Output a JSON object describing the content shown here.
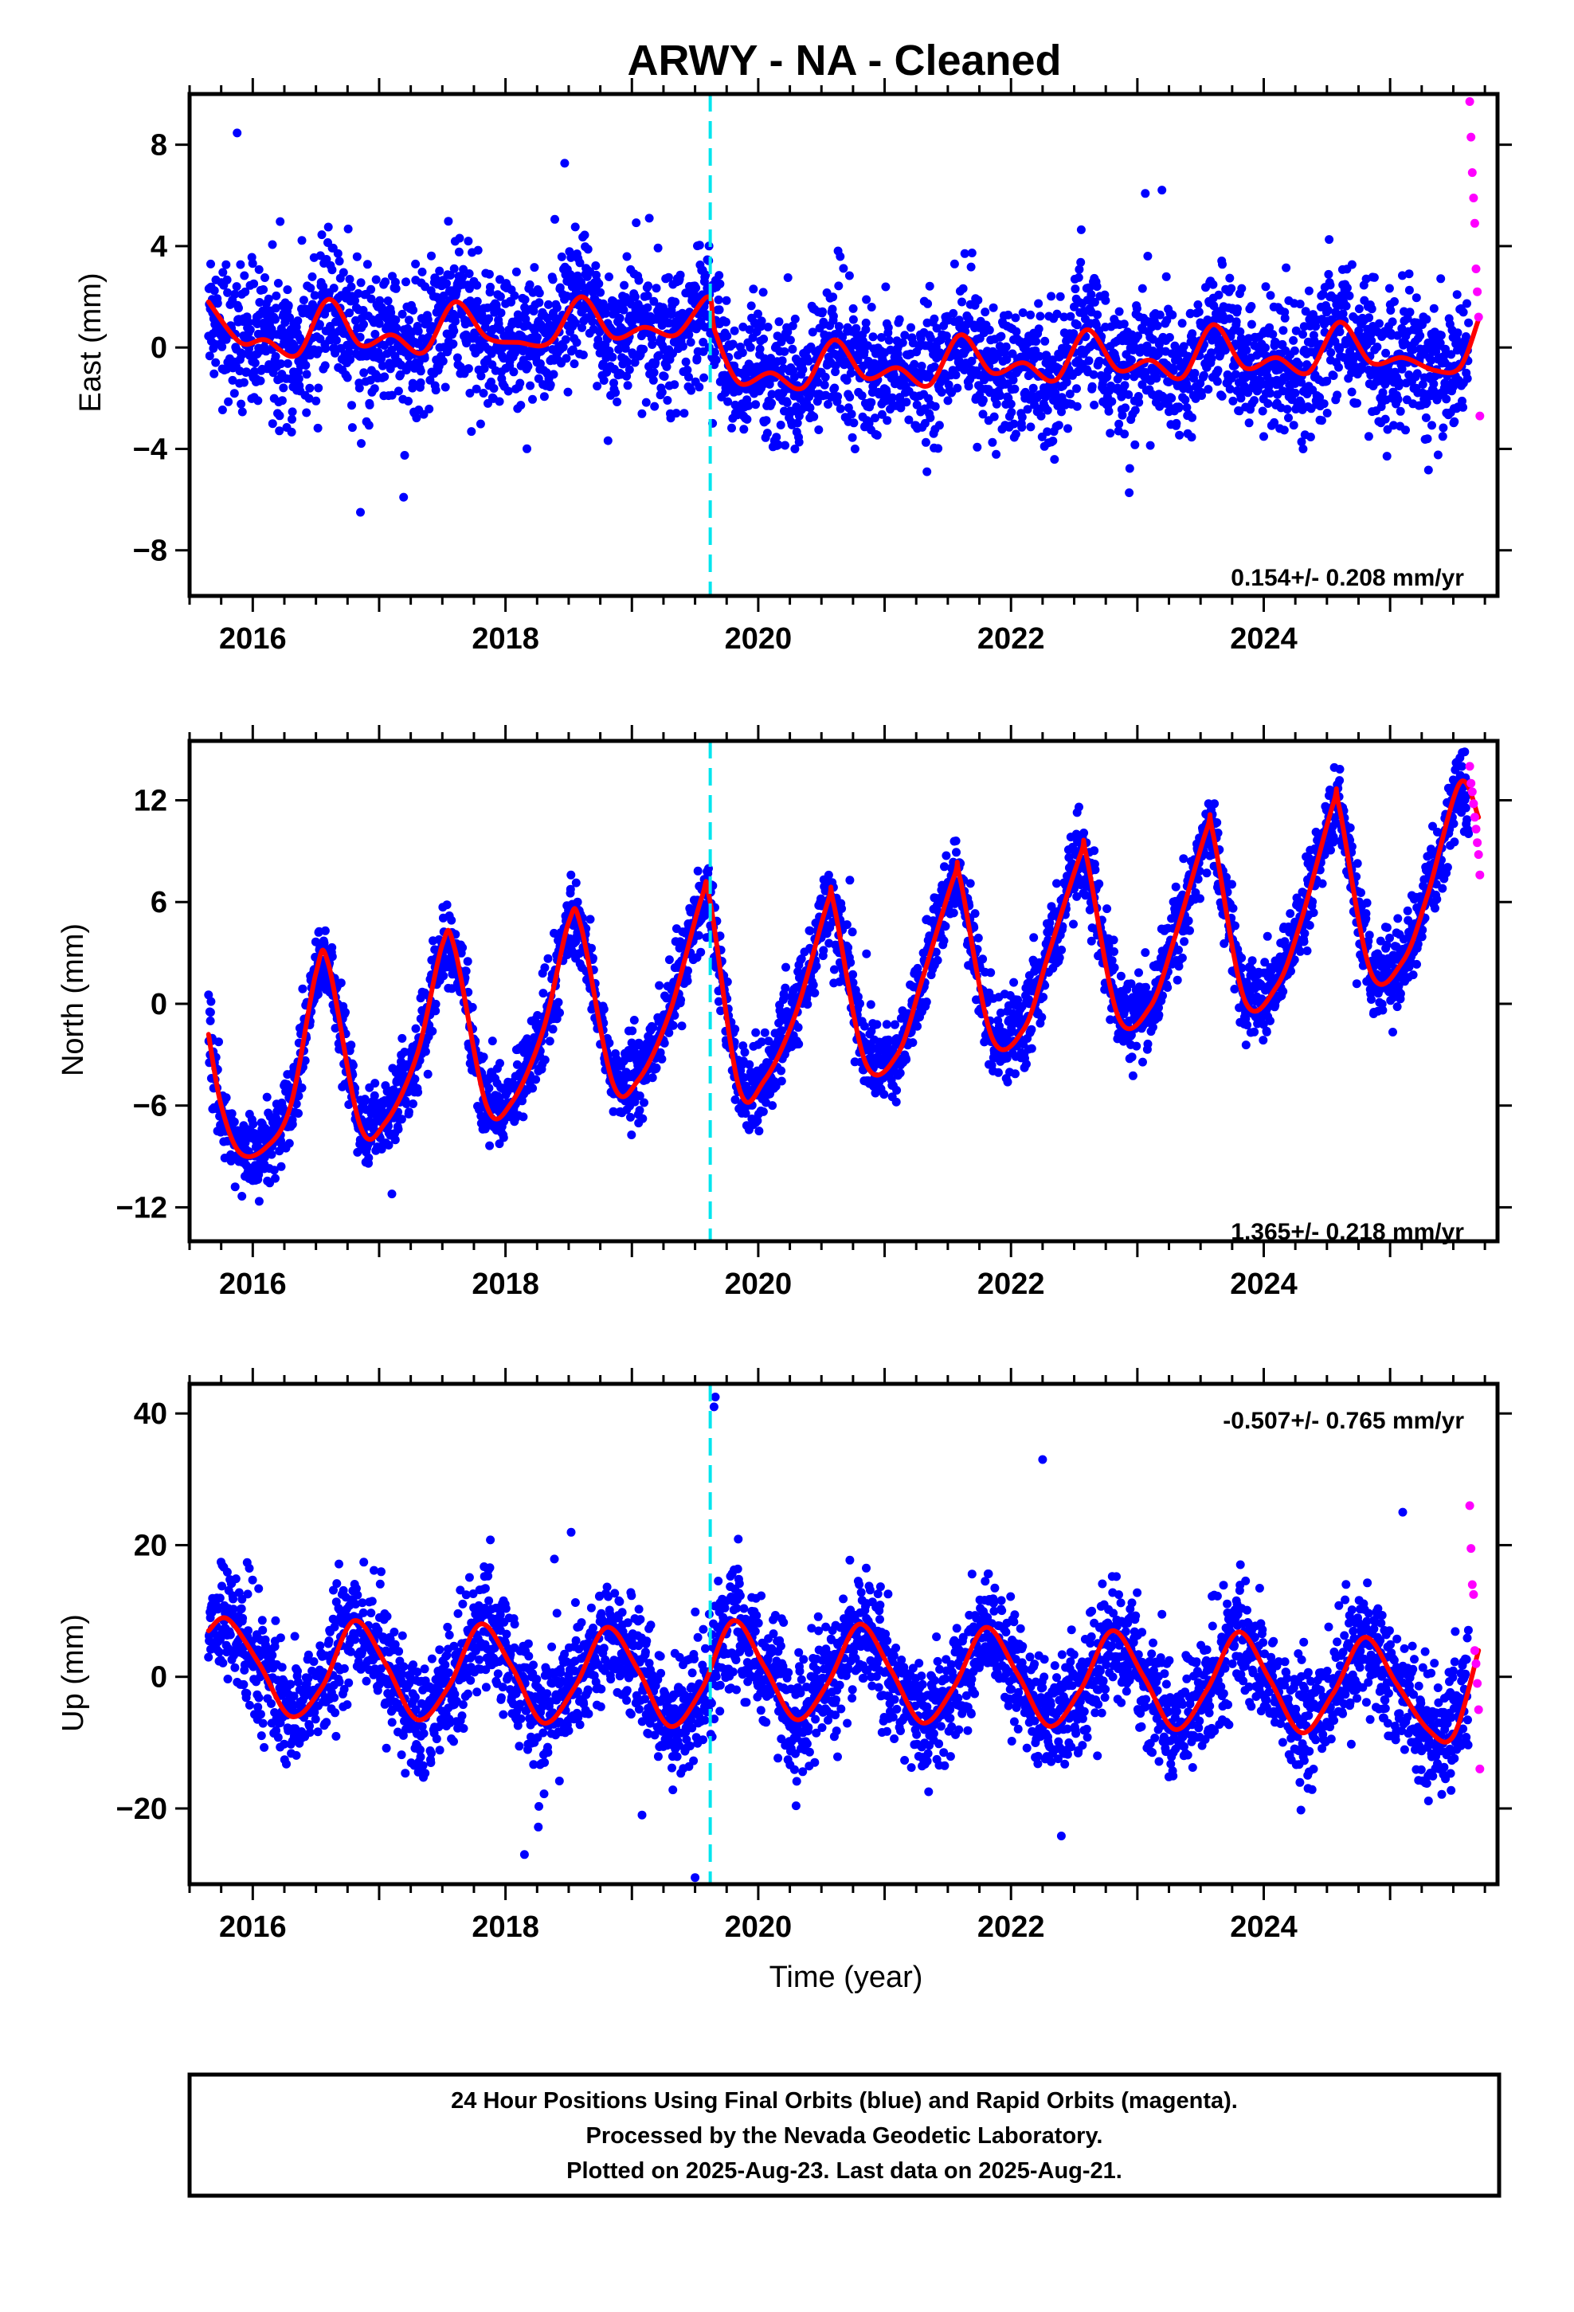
{
  "title": "ARWY  - NA - Cleaned",
  "colors": {
    "final": "#0000ff",
    "rapid": "#ff00ff",
    "model": "#ff0000",
    "event_line": "#00e5ee"
  },
  "chart_data": [
    {
      "type": "scatter",
      "ylabel": "East (mm)",
      "xlabel": "",
      "xlim": [
        2015.5,
        2025.85
      ],
      "ylim": [
        -9.8,
        10.0
      ],
      "x_ticks": [
        2016,
        2018,
        2020,
        2022,
        2024
      ],
      "y_ticks": [
        8,
        4,
        0,
        -4,
        -8
      ],
      "y_tick_labels": [
        "8",
        "4",
        "0",
        "−4",
        "−8"
      ],
      "rate_label": "0.154+/- 0.208 mm/yr",
      "rate_position": "bottom-right",
      "event_line_x": 2019.62,
      "data_span": [
        2015.65,
        2025.62
      ],
      "series": [
        {
          "role": "final orbits (blue)",
          "model_offset_pre_step": 0.6,
          "model_offset_post_step": -1.2,
          "trend_mm_per_yr": 0.154,
          "annual_amplitude": 0.9,
          "scatter_sd": 1.3
        },
        {
          "role": "rapid orbits (magenta)",
          "x": [
            2025.63,
            2025.64,
            2025.65,
            2025.66,
            2025.67,
            2025.68,
            2025.69,
            2025.7,
            2025.71
          ],
          "y": [
            9.7,
            8.3,
            6.9,
            5.9,
            4.9,
            3.1,
            2.2,
            1.2,
            -2.7
          ]
        },
        {
          "role": "model (red)",
          "x": [
            2015.65,
            2015.9,
            2016.1,
            2016.35,
            2016.6,
            2016.85,
            2017.1,
            2017.35,
            2017.6,
            2017.85,
            2018.1,
            2018.35,
            2018.6,
            2018.85,
            2019.1,
            2019.35,
            2019.6,
            2019.66,
            2019.85,
            2020.1,
            2020.35,
            2020.6,
            2020.85,
            2021.1,
            2021.35,
            2021.6,
            2021.85,
            2022.1,
            2022.35,
            2022.6,
            2022.85,
            2023.1,
            2023.35,
            2023.6,
            2023.85,
            2024.1,
            2024.35,
            2024.6,
            2024.85,
            2025.1,
            2025.35,
            2025.55,
            2025.7
          ],
          "y": [
            1.8,
            0.2,
            0.3,
            -0.3,
            1.9,
            0.1,
            0.5,
            -0.2,
            1.8,
            0.4,
            0.2,
            0.2,
            2.0,
            0.4,
            0.8,
            0.5,
            2.0,
            0.6,
            -1.4,
            -1.0,
            -1.6,
            0.3,
            -1.2,
            -0.8,
            -1.5,
            0.5,
            -1.0,
            -0.6,
            -1.3,
            0.7,
            -0.9,
            -0.5,
            -1.2,
            0.9,
            -0.8,
            -0.4,
            -1.0,
            1.0,
            -0.6,
            -0.4,
            -0.9,
            -0.8,
            1.1
          ]
        }
      ]
    },
    {
      "type": "scatter",
      "ylabel": "North (mm)",
      "xlabel": "",
      "xlim": [
        2015.5,
        2025.85
      ],
      "ylim": [
        -14.0,
        15.5
      ],
      "x_ticks": [
        2016,
        2018,
        2020,
        2022,
        2024
      ],
      "y_ticks": [
        12,
        6,
        0,
        -6,
        -12
      ],
      "y_tick_labels": [
        "12",
        "6",
        "0",
        "−6",
        "−12"
      ],
      "rate_label": "1.365+/- 0.218 mm/yr",
      "rate_position": "bottom-right",
      "event_line_x": 2019.62,
      "data_span": [
        2015.65,
        2025.62
      ],
      "series": [
        {
          "role": "final orbits (blue)",
          "trend_mm_per_yr": 1.365,
          "scatter_sd": 1.2
        },
        {
          "role": "rapid orbits (magenta)",
          "x": [
            2025.63,
            2025.64,
            2025.65,
            2025.66,
            2025.67,
            2025.68,
            2025.69,
            2025.7,
            2025.71
          ],
          "y": [
            14.0,
            13.0,
            12.5,
            11.8,
            11.0,
            10.3,
            9.5,
            8.8,
            7.6
          ]
        },
        {
          "role": "model (red)",
          "x": [
            2015.65,
            2015.75,
            2015.9,
            2016.1,
            2016.3,
            2016.5,
            2016.6,
            2016.85,
            2017.05,
            2017.3,
            2017.5,
            2017.6,
            2017.85,
            2018.05,
            2018.3,
            2018.5,
            2018.6,
            2018.85,
            2019.05,
            2019.3,
            2019.55,
            2019.62,
            2019.85,
            2020.05,
            2020.3,
            2020.55,
            2020.6,
            2020.85,
            2021.1,
            2021.3,
            2021.55,
            2021.6,
            2021.85,
            2022.1,
            2022.3,
            2022.55,
            2022.6,
            2022.85,
            2023.1,
            2023.3,
            2023.55,
            2023.6,
            2023.85,
            2024.1,
            2024.3,
            2024.55,
            2024.6,
            2024.85,
            2025.1,
            2025.3,
            2025.55,
            2025.7
          ],
          "y": [
            -1.8,
            -6.0,
            -8.8,
            -8.5,
            -6.0,
            1.8,
            2.3,
            -7.2,
            -7.0,
            -3.0,
            3.5,
            3.2,
            -6.0,
            -5.8,
            -1.5,
            4.8,
            4.5,
            -4.7,
            -4.5,
            -0.5,
            6.2,
            6.0,
            -5.0,
            -4.5,
            -0.5,
            6.0,
            5.8,
            -3.5,
            -3.0,
            1.5,
            7.5,
            7.3,
            -2.0,
            -1.5,
            3.0,
            8.8,
            8.6,
            -0.8,
            -0.2,
            4.0,
            10.3,
            10.0,
            0.2,
            1.0,
            5.0,
            11.8,
            11.5,
            1.8,
            2.5,
            6.5,
            13.0,
            11.0
          ]
        }
      ]
    },
    {
      "type": "scatter",
      "ylabel": "Up (mm)",
      "xlabel": "Time (year)",
      "xlim": [
        2015.5,
        2025.85
      ],
      "ylim": [
        -31.5,
        44.5
      ],
      "x_ticks": [
        2016,
        2018,
        2020,
        2022,
        2024
      ],
      "y_ticks": [
        40,
        20,
        0,
        -20
      ],
      "y_tick_labels": [
        "40",
        "20",
        "0",
        "−20"
      ],
      "rate_label": "-0.507+/- 0.765 mm/yr",
      "rate_position": "top-right",
      "event_line_x": 2019.62,
      "data_span": [
        2015.65,
        2025.62
      ],
      "series": [
        {
          "role": "final orbits (blue)",
          "trend_mm_per_yr": -0.507,
          "scatter_sd": 4.5
        },
        {
          "role": "rapid orbits (magenta)",
          "x": [
            2025.63,
            2025.64,
            2025.65,
            2025.66,
            2025.67,
            2025.68,
            2025.69,
            2025.7,
            2025.71
          ],
          "y": [
            26.0,
            19.5,
            14.0,
            12.5,
            4.0,
            2.0,
            -1.0,
            -5.0,
            -14.0
          ]
        },
        {
          "role": "model (red)",
          "x": [
            2015.65,
            2015.8,
            2016.05,
            2016.3,
            2016.55,
            2016.8,
            2017.05,
            2017.3,
            2017.55,
            2017.8,
            2018.05,
            2018.3,
            2018.55,
            2018.8,
            2019.05,
            2019.3,
            2019.55,
            2019.8,
            2020.05,
            2020.3,
            2020.55,
            2020.8,
            2021.05,
            2021.3,
            2021.55,
            2021.8,
            2022.05,
            2022.3,
            2022.55,
            2022.8,
            2023.05,
            2023.3,
            2023.55,
            2023.8,
            2024.05,
            2024.3,
            2024.55,
            2024.8,
            2025.05,
            2025.3,
            2025.5,
            2025.7
          ],
          "y": [
            7.0,
            8.8,
            2.0,
            -6.0,
            -1.5,
            8.5,
            2.0,
            -6.5,
            -1.5,
            8.0,
            1.5,
            -7.0,
            -1.5,
            7.5,
            1.0,
            -7.5,
            -2.0,
            8.5,
            1.5,
            -6.5,
            -1.0,
            8.0,
            1.0,
            -7.0,
            -1.5,
            7.5,
            0.5,
            -7.5,
            -2.0,
            7.0,
            0.0,
            -8.0,
            -2.0,
            6.8,
            -0.5,
            -8.5,
            -2.5,
            6.0,
            -1.0,
            -8.0,
            -9.0,
            4.0
          ]
        },
        {
          "role": "outliers (blue)",
          "x": [
            2019.66,
            2019.65,
            2022.25,
            2025.1,
            2019.5,
            2018.15,
            2019.08
          ],
          "y": [
            42.5,
            41.0,
            33.0,
            25.0,
            -30.5,
            -27.0,
            -21.0
          ]
        }
      ]
    }
  ],
  "footer": {
    "lines": [
      "24 Hour Positions Using Final Orbits (blue) and Rapid Orbits (magenta).",
      "Processed by the Nevada Geodetic Laboratory.",
      "Plotted on 2025-Aug-23. Last data on 2025-Aug-21."
    ]
  }
}
